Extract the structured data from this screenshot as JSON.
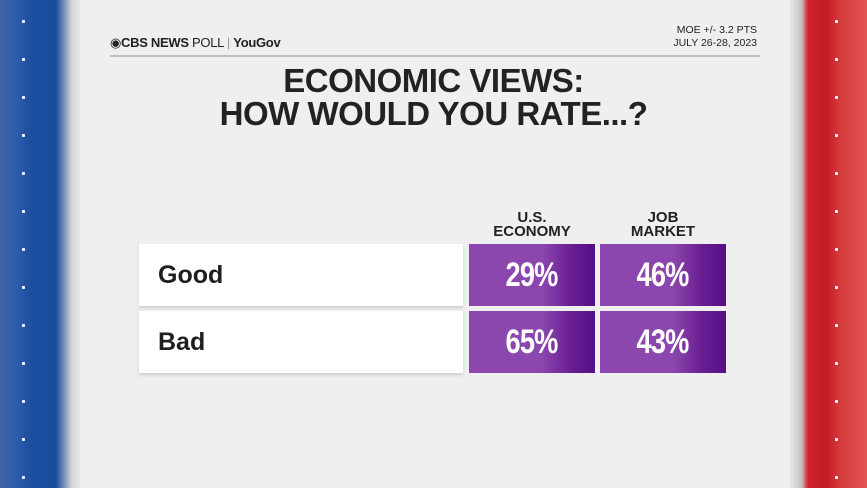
{
  "header": {
    "brand": "CBS NEWS",
    "poll": "POLL",
    "partner": "YouGov",
    "moe": "MOE +/- 3.2 PTS",
    "dates": "JULY 26-28, 2023"
  },
  "title": {
    "line1": "ECONOMIC VIEWS:",
    "line2": "HOW WOULD YOU RATE...?"
  },
  "colors": {
    "purple": "#8b47ad",
    "purple_dark": "#540f86",
    "blue": "#1d4fa0",
    "red": "#d2232a"
  },
  "chart_data": {
    "type": "table",
    "title": "ECONOMIC VIEWS: HOW WOULD YOU RATE...?",
    "columns": [
      {
        "line1": "U.S.",
        "line2": "ECONOMY"
      },
      {
        "line1": "JOB",
        "line2": "MARKET"
      }
    ],
    "rows": [
      {
        "label": "Good",
        "values": [
          "29%",
          "46%"
        ]
      },
      {
        "label": "Bad",
        "values": [
          "65%",
          "43%"
        ]
      }
    ]
  }
}
